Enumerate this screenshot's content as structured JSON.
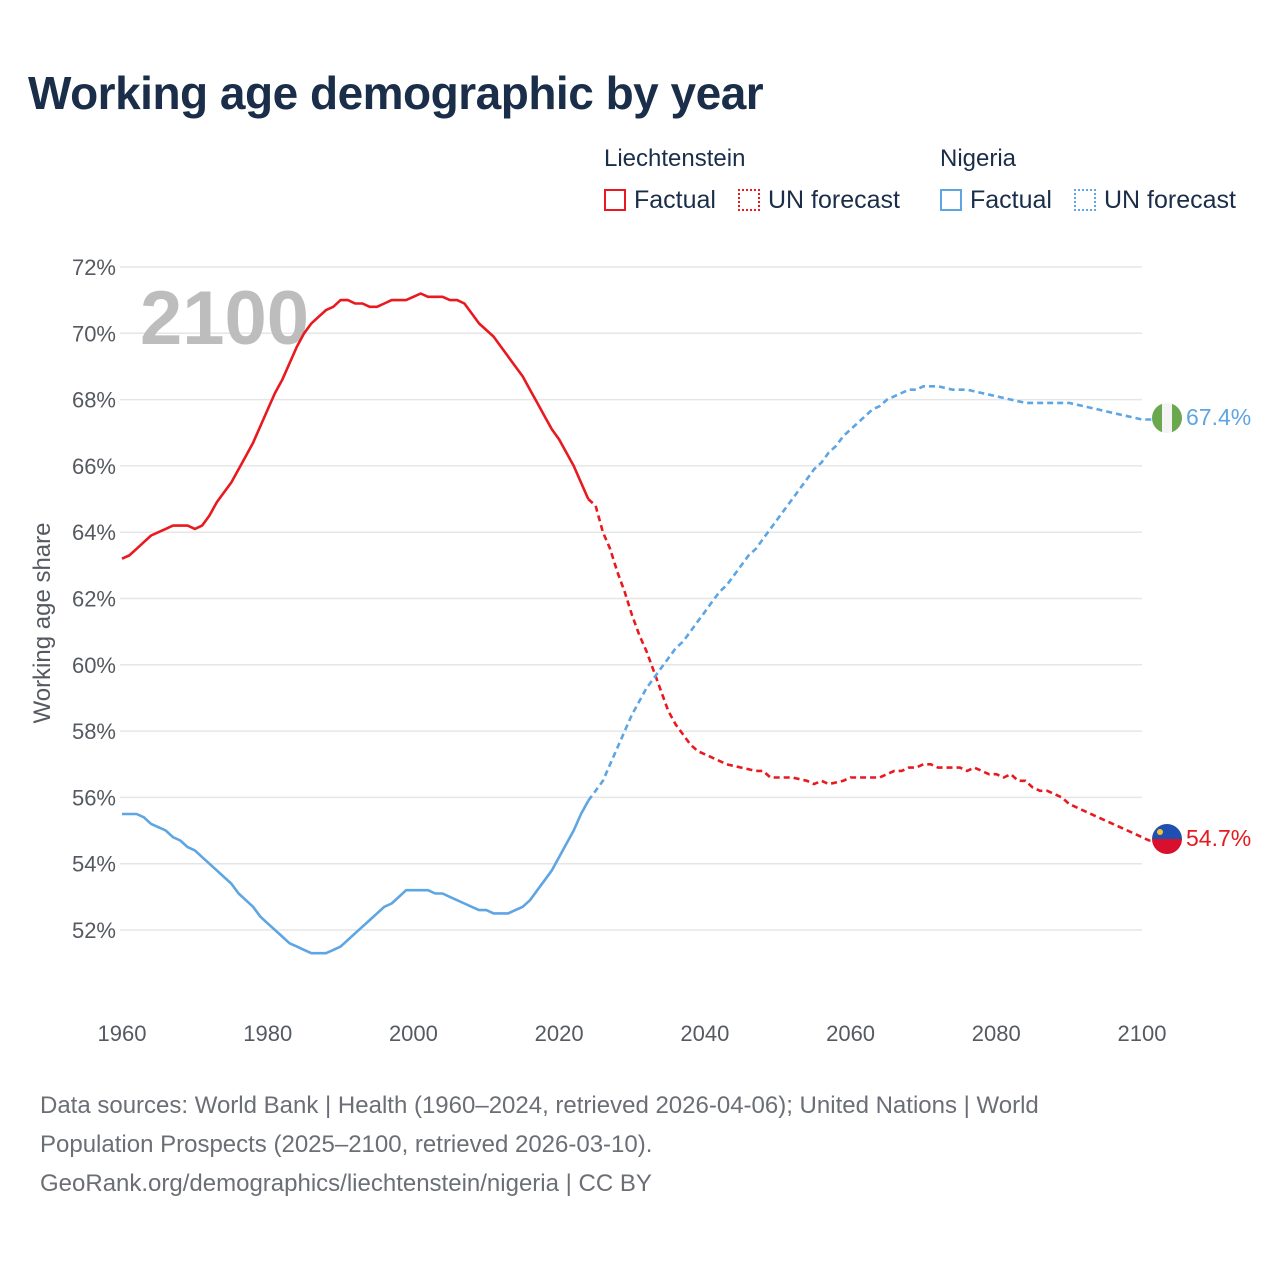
{
  "title": "Working age demographic by year",
  "legend": {
    "groups": [
      {
        "name": "Liechtenstein",
        "factual_label": "Factual",
        "forecast_label": "UN forecast",
        "color": "#e8191f"
      },
      {
        "name": "Nigeria",
        "factual_label": "Factual",
        "forecast_label": "UN forecast",
        "color": "#5ea5e3"
      }
    ]
  },
  "sources": {
    "line1": "Data sources: World Bank | Health (1960–2024, retrieved 2026-04-06); United Nations | World",
    "line2": "Population Prospects (2025–2100, retrieved 2026-03-10).",
    "line3": "GeoRank.org/demographics/liechtenstein/nigeria | CC BY"
  },
  "chart_data": {
    "type": "line",
    "title": "Working age demographic by year",
    "ylabel": "Working age share",
    "xlabel": "",
    "year_watermark": "2100",
    "xlim": [
      1960,
      2100
    ],
    "ylim": [
      50,
      72
    ],
    "x_ticks": [
      1960,
      1980,
      2000,
      2020,
      2040,
      2060,
      2080,
      2100
    ],
    "y_ticks": [
      52,
      54,
      56,
      58,
      60,
      62,
      64,
      66,
      68,
      70,
      72
    ],
    "y_tick_labels": [
      "52%",
      "54%",
      "56%",
      "58%",
      "60%",
      "62%",
      "64%",
      "66%",
      "68%",
      "70%",
      "72%"
    ],
    "factual_end_year": 2024,
    "series": [
      {
        "name": "Liechtenstein",
        "color": "#e8191f",
        "end_label": "54.7%",
        "points": [
          [
            1960,
            63.2
          ],
          [
            1961,
            63.3
          ],
          [
            1962,
            63.5
          ],
          [
            1963,
            63.7
          ],
          [
            1964,
            63.9
          ],
          [
            1965,
            64.0
          ],
          [
            1966,
            64.1
          ],
          [
            1967,
            64.2
          ],
          [
            1968,
            64.2
          ],
          [
            1969,
            64.2
          ],
          [
            1970,
            64.1
          ],
          [
            1971,
            64.2
          ],
          [
            1972,
            64.5
          ],
          [
            1973,
            64.9
          ],
          [
            1974,
            65.2
          ],
          [
            1975,
            65.5
          ],
          [
            1976,
            65.9
          ],
          [
            1977,
            66.3
          ],
          [
            1978,
            66.7
          ],
          [
            1979,
            67.2
          ],
          [
            1980,
            67.7
          ],
          [
            1981,
            68.2
          ],
          [
            1982,
            68.6
          ],
          [
            1983,
            69.1
          ],
          [
            1984,
            69.6
          ],
          [
            1985,
            70.0
          ],
          [
            1986,
            70.3
          ],
          [
            1987,
            70.5
          ],
          [
            1988,
            70.7
          ],
          [
            1989,
            70.8
          ],
          [
            1990,
            71.0
          ],
          [
            1991,
            71.0
          ],
          [
            1992,
            70.9
          ],
          [
            1993,
            70.9
          ],
          [
            1994,
            70.8
          ],
          [
            1995,
            70.8
          ],
          [
            1996,
            70.9
          ],
          [
            1997,
            71.0
          ],
          [
            1998,
            71.0
          ],
          [
            1999,
            71.0
          ],
          [
            2000,
            71.1
          ],
          [
            2001,
            71.2
          ],
          [
            2002,
            71.1
          ],
          [
            2003,
            71.1
          ],
          [
            2004,
            71.1
          ],
          [
            2005,
            71.0
          ],
          [
            2006,
            71.0
          ],
          [
            2007,
            70.9
          ],
          [
            2008,
            70.6
          ],
          [
            2009,
            70.3
          ],
          [
            2010,
            70.1
          ],
          [
            2011,
            69.9
          ],
          [
            2012,
            69.6
          ],
          [
            2013,
            69.3
          ],
          [
            2014,
            69.0
          ],
          [
            2015,
            68.7
          ],
          [
            2016,
            68.3
          ],
          [
            2017,
            67.9
          ],
          [
            2018,
            67.5
          ],
          [
            2019,
            67.1
          ],
          [
            2020,
            66.8
          ],
          [
            2021,
            66.4
          ],
          [
            2022,
            66.0
          ],
          [
            2023,
            65.5
          ],
          [
            2024,
            65.0
          ],
          [
            2025,
            64.8
          ],
          [
            2026,
            64.0
          ],
          [
            2027,
            63.5
          ],
          [
            2028,
            62.8
          ],
          [
            2029,
            62.2
          ],
          [
            2030,
            61.5
          ],
          [
            2031,
            60.9
          ],
          [
            2032,
            60.4
          ],
          [
            2033,
            59.8
          ],
          [
            2034,
            59.2
          ],
          [
            2035,
            58.6
          ],
          [
            2036,
            58.2
          ],
          [
            2037,
            57.9
          ],
          [
            2038,
            57.6
          ],
          [
            2039,
            57.4
          ],
          [
            2040,
            57.3
          ],
          [
            2041,
            57.2
          ],
          [
            2042,
            57.1
          ],
          [
            2043,
            57.0
          ],
          [
            2045,
            56.9
          ],
          [
            2047,
            56.8
          ],
          [
            2048,
            56.8
          ],
          [
            2049,
            56.6
          ],
          [
            2050,
            56.6
          ],
          [
            2052,
            56.6
          ],
          [
            2054,
            56.5
          ],
          [
            2055,
            56.4
          ],
          [
            2056,
            56.5
          ],
          [
            2057,
            56.4
          ],
          [
            2059,
            56.5
          ],
          [
            2060,
            56.6
          ],
          [
            2061,
            56.6
          ],
          [
            2062,
            56.6
          ],
          [
            2064,
            56.6
          ],
          [
            2065,
            56.7
          ],
          [
            2066,
            56.8
          ],
          [
            2067,
            56.8
          ],
          [
            2068,
            56.9
          ],
          [
            2069,
            56.9
          ],
          [
            2070,
            57.0
          ],
          [
            2071,
            57.0
          ],
          [
            2072,
            56.9
          ],
          [
            2074,
            56.9
          ],
          [
            2075,
            56.9
          ],
          [
            2076,
            56.8
          ],
          [
            2077,
            56.9
          ],
          [
            2078,
            56.8
          ],
          [
            2079,
            56.7
          ],
          [
            2080,
            56.7
          ],
          [
            2081,
            56.6
          ],
          [
            2082,
            56.7
          ],
          [
            2083,
            56.5
          ],
          [
            2084,
            56.5
          ],
          [
            2085,
            56.3
          ],
          [
            2086,
            56.2
          ],
          [
            2087,
            56.2
          ],
          [
            2088,
            56.1
          ],
          [
            2089,
            56.0
          ],
          [
            2090,
            55.8
          ],
          [
            2092,
            55.6
          ],
          [
            2094,
            55.4
          ],
          [
            2096,
            55.2
          ],
          [
            2098,
            55.0
          ],
          [
            2100,
            54.8
          ],
          [
            2101,
            54.7
          ],
          [
            2103,
            54.7
          ]
        ]
      },
      {
        "name": "Nigeria",
        "color": "#5ea5e3",
        "end_label": "67.4%",
        "points": [
          [
            1960,
            55.5
          ],
          [
            1961,
            55.5
          ],
          [
            1962,
            55.5
          ],
          [
            1963,
            55.4
          ],
          [
            1964,
            55.2
          ],
          [
            1965,
            55.1
          ],
          [
            1966,
            55.0
          ],
          [
            1967,
            54.8
          ],
          [
            1968,
            54.7
          ],
          [
            1969,
            54.5
          ],
          [
            1970,
            54.4
          ],
          [
            1971,
            54.2
          ],
          [
            1972,
            54.0
          ],
          [
            1973,
            53.8
          ],
          [
            1974,
            53.6
          ],
          [
            1975,
            53.4
          ],
          [
            1976,
            53.1
          ],
          [
            1977,
            52.9
          ],
          [
            1978,
            52.7
          ],
          [
            1979,
            52.4
          ],
          [
            1980,
            52.2
          ],
          [
            1981,
            52.0
          ],
          [
            1982,
            51.8
          ],
          [
            1983,
            51.6
          ],
          [
            1984,
            51.5
          ],
          [
            1985,
            51.4
          ],
          [
            1986,
            51.3
          ],
          [
            1987,
            51.3
          ],
          [
            1988,
            51.3
          ],
          [
            1989,
            51.4
          ],
          [
            1990,
            51.5
          ],
          [
            1991,
            51.7
          ],
          [
            1992,
            51.9
          ],
          [
            1993,
            52.1
          ],
          [
            1994,
            52.3
          ],
          [
            1995,
            52.5
          ],
          [
            1996,
            52.7
          ],
          [
            1997,
            52.8
          ],
          [
            1998,
            53.0
          ],
          [
            1999,
            53.2
          ],
          [
            2000,
            53.2
          ],
          [
            2001,
            53.2
          ],
          [
            2002,
            53.2
          ],
          [
            2003,
            53.1
          ],
          [
            2004,
            53.1
          ],
          [
            2005,
            53.0
          ],
          [
            2006,
            52.9
          ],
          [
            2007,
            52.8
          ],
          [
            2008,
            52.7
          ],
          [
            2009,
            52.6
          ],
          [
            2010,
            52.6
          ],
          [
            2011,
            52.5
          ],
          [
            2012,
            52.5
          ],
          [
            2013,
            52.5
          ],
          [
            2014,
            52.6
          ],
          [
            2015,
            52.7
          ],
          [
            2016,
            52.9
          ],
          [
            2017,
            53.2
          ],
          [
            2018,
            53.5
          ],
          [
            2019,
            53.8
          ],
          [
            2020,
            54.2
          ],
          [
            2021,
            54.6
          ],
          [
            2022,
            55.0
          ],
          [
            2023,
            55.5
          ],
          [
            2024,
            55.9
          ],
          [
            2025,
            56.2
          ],
          [
            2026,
            56.5
          ],
          [
            2027,
            57.0
          ],
          [
            2028,
            57.5
          ],
          [
            2029,
            58.0
          ],
          [
            2030,
            58.5
          ],
          [
            2031,
            58.9
          ],
          [
            2032,
            59.3
          ],
          [
            2033,
            59.6
          ],
          [
            2034,
            59.9
          ],
          [
            2035,
            60.2
          ],
          [
            2036,
            60.5
          ],
          [
            2037,
            60.7
          ],
          [
            2038,
            61.0
          ],
          [
            2039,
            61.3
          ],
          [
            2040,
            61.6
          ],
          [
            2041,
            61.9
          ],
          [
            2042,
            62.2
          ],
          [
            2043,
            62.4
          ],
          [
            2044,
            62.7
          ],
          [
            2045,
            63.0
          ],
          [
            2046,
            63.3
          ],
          [
            2047,
            63.5
          ],
          [
            2048,
            63.8
          ],
          [
            2049,
            64.1
          ],
          [
            2050,
            64.4
          ],
          [
            2051,
            64.7
          ],
          [
            2052,
            65.0
          ],
          [
            2053,
            65.3
          ],
          [
            2054,
            65.6
          ],
          [
            2055,
            65.9
          ],
          [
            2056,
            66.1
          ],
          [
            2057,
            66.4
          ],
          [
            2058,
            66.6
          ],
          [
            2059,
            66.9
          ],
          [
            2060,
            67.1
          ],
          [
            2061,
            67.3
          ],
          [
            2062,
            67.5
          ],
          [
            2063,
            67.7
          ],
          [
            2064,
            67.8
          ],
          [
            2065,
            68.0
          ],
          [
            2066,
            68.1
          ],
          [
            2067,
            68.2
          ],
          [
            2068,
            68.3
          ],
          [
            2069,
            68.3
          ],
          [
            2070,
            68.4
          ],
          [
            2072,
            68.4
          ],
          [
            2074,
            68.3
          ],
          [
            2076,
            68.3
          ],
          [
            2078,
            68.2
          ],
          [
            2080,
            68.1
          ],
          [
            2082,
            68.0
          ],
          [
            2084,
            67.9
          ],
          [
            2086,
            67.9
          ],
          [
            2088,
            67.9
          ],
          [
            2090,
            67.9
          ],
          [
            2092,
            67.8
          ],
          [
            2094,
            67.7
          ],
          [
            2096,
            67.6
          ],
          [
            2098,
            67.5
          ],
          [
            2100,
            67.4
          ],
          [
            2101,
            67.4
          ],
          [
            2103,
            67.4
          ]
        ]
      }
    ]
  }
}
